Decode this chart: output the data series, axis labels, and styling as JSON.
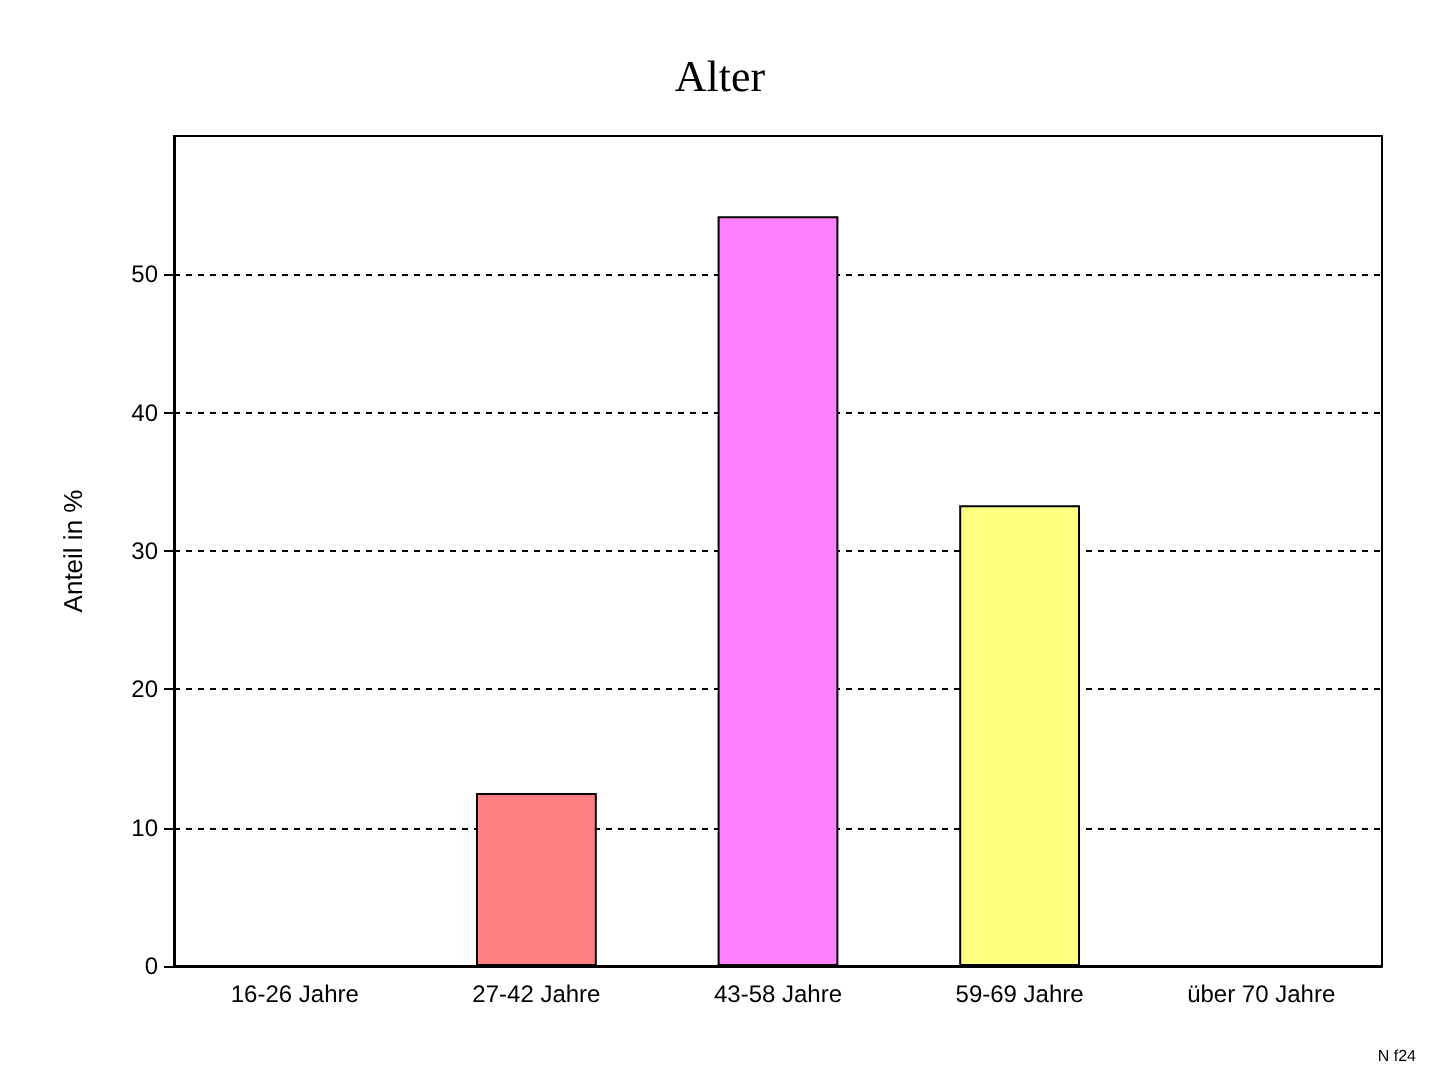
{
  "chart_data": {
    "type": "bar",
    "title": "Alter",
    "ylabel": "Anteil in %",
    "categories": [
      "16-26 Jahre",
      "27-42 Jahre",
      "43-58 Jahre",
      "59-69 Jahre",
      "über 70 Jahre"
    ],
    "values": [
      0,
      12.5,
      54.2,
      33.3,
      0
    ],
    "colors": [
      "#000000",
      "#ff8080",
      "#ff80ff",
      "#ffff80",
      "#000000"
    ],
    "ylim": [
      0,
      60
    ],
    "yticks": [
      0,
      10,
      20,
      30,
      40,
      50
    ],
    "grid": "y",
    "annotations": [
      "N f24"
    ]
  }
}
